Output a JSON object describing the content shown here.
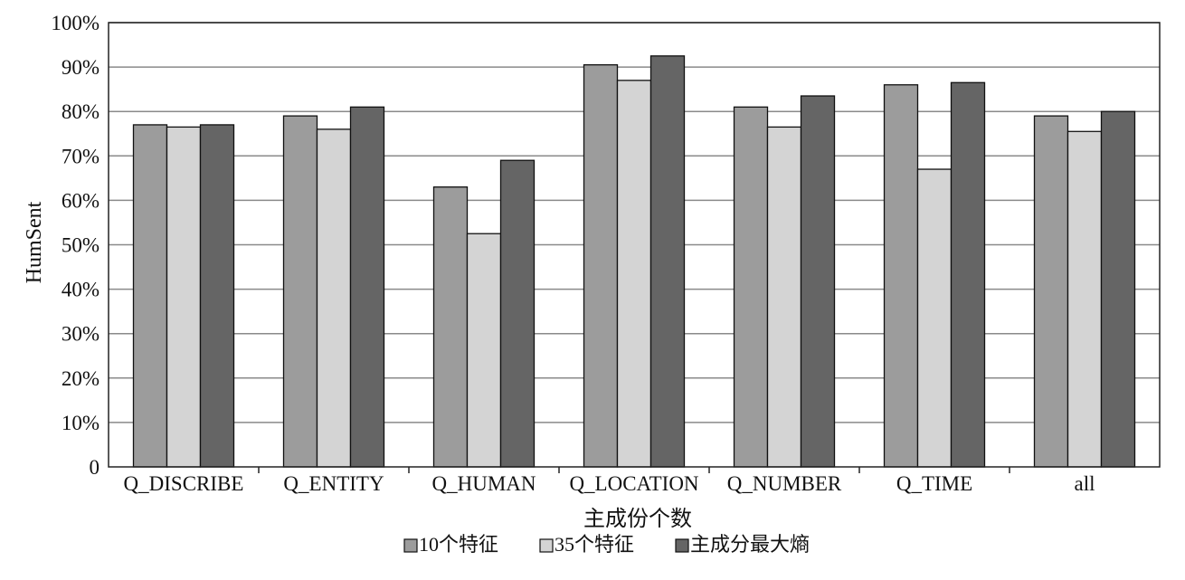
{
  "chart_data": {
    "type": "bar",
    "categories": [
      "Q_DISCRIBE",
      "Q_ENTITY",
      "Q_HUMAN",
      "Q_LOCATION",
      "Q_NUMBER",
      "Q_TIME",
      "all"
    ],
    "series": [
      {
        "name": "10个特征",
        "values": [
          77,
          79,
          63,
          90.5,
          81,
          86,
          79
        ],
        "color": "#9c9c9c"
      },
      {
        "name": "35个特征",
        "values": [
          76.5,
          76,
          52.5,
          87,
          76.5,
          67,
          75.5
        ],
        "color": "#d4d4d4"
      },
      {
        "name": "主成分最大熵",
        "values": [
          77,
          81,
          69,
          92.5,
          83.5,
          86.5,
          80
        ],
        "color": "#656565"
      }
    ],
    "xlabel": "主成份个数",
    "ylabel": "HumSent",
    "ylim": [
      0,
      100
    ],
    "yticks": [
      0,
      10,
      20,
      30,
      40,
      50,
      60,
      70,
      80,
      90,
      100
    ],
    "ytick_labels": [
      "0",
      "10%",
      "20%",
      "30%",
      "40%",
      "50%",
      "60%",
      "70%",
      "80%",
      "90%",
      "100%"
    ],
    "grid": true,
    "legend_position": "bottom"
  }
}
